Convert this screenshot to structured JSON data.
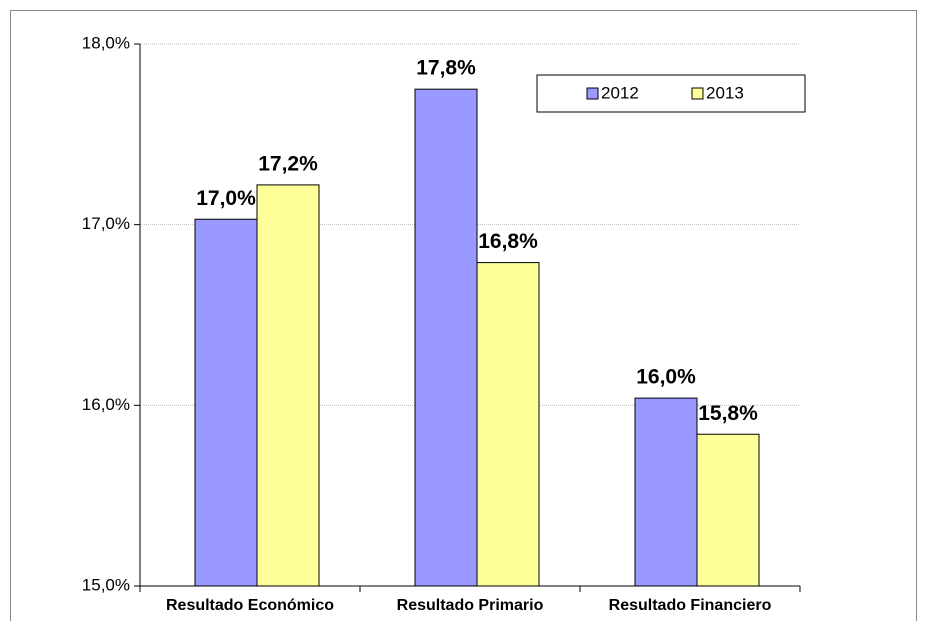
{
  "chart_data": {
    "type": "bar",
    "categories": [
      "Resultado Económico",
      "Resultado Primario",
      "Resultado Financiero"
    ],
    "series": [
      {
        "name": "2012",
        "color": "#9999ff",
        "values": [
          17.03,
          17.75,
          16.04
        ],
        "value_labels": [
          "17,0%",
          "17,8%",
          "16,0%"
        ]
      },
      {
        "name": "2013",
        "color": "#ffff99",
        "values": [
          17.22,
          16.79,
          15.84
        ],
        "value_labels": [
          "17,2%",
          "16,8%",
          "15,8%"
        ]
      }
    ],
    "ylim": [
      15,
      18
    ],
    "yticks": [
      {
        "value": 15,
        "label": "15,0%"
      },
      {
        "value": 16,
        "label": "16,0%"
      },
      {
        "value": 17,
        "label": "17,0%"
      },
      {
        "value": 18,
        "label": "18,0%"
      }
    ],
    "grid": true,
    "legend": "top-right"
  }
}
